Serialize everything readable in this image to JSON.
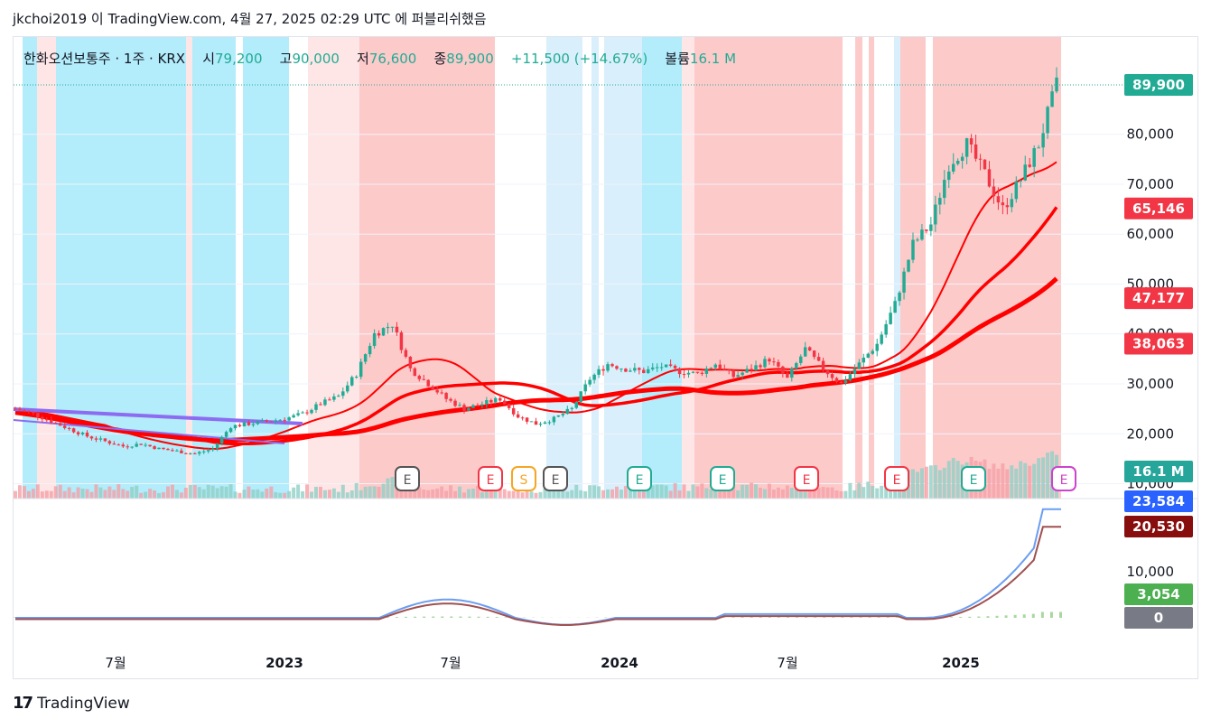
{
  "header": {
    "text": "jkchoi2019 이 TradingView.com, 4월 27, 2025 02:29 UTC 에 퍼블리쉬했음"
  },
  "legend": {
    "symbol": "한화오션보통주 · 1주 · KRX",
    "open_label": "시",
    "open": "79,200",
    "high_label": "고",
    "high": "90,000",
    "low_label": "저",
    "low": "76,600",
    "close_label": "종",
    "close": "89,900",
    "change": "+11,500 (+14.67%)",
    "volume_label": "볼륨",
    "volume": "16.1 M"
  },
  "colors": {
    "up": "#22ab94",
    "down": "#f23645",
    "bg_cyan": "#b3ecfb",
    "bg_lightblue": "#d9effb",
    "bg_pink": "#ffe6e6",
    "bg_red": "#fdcaca",
    "ma_red": "#ff0000",
    "ma_purple": "#8c6cf0",
    "ma_orange": "#f5c28a",
    "macd_line": "#6b9df0",
    "macd_signal": "#a05050",
    "macd_hist": "#a8d7a0"
  },
  "chart_data": [
    {
      "type": "candlestick",
      "title": "한화오션보통주 · 1주 · KRX",
      "x_ticks": [
        "7월",
        "2023",
        "7월",
        "2024",
        "7월",
        "2025"
      ],
      "y_ticks": [
        "80,000",
        "70,000",
        "60,000",
        "50,000",
        "40,000",
        "30,000",
        "20,000",
        "10,000"
      ],
      "ylim": [
        10000,
        90000
      ],
      "last_close": 89900,
      "last_ohlc": {
        "open": 79200,
        "high": 90000,
        "low": 76600,
        "close": 89900
      },
      "price_tags": [
        {
          "label": "89,900",
          "value": 89900,
          "color": "#22ab94"
        },
        {
          "label": "65,146",
          "value": 65146,
          "color": "#f23645"
        },
        {
          "label": "47,177",
          "value": 47177,
          "color": "#f23645"
        },
        {
          "label": "38,063",
          "value": 38063,
          "color": "#f23645"
        },
        {
          "label": "16.1 M",
          "value": 16.1,
          "color": "#26a69a",
          "kind": "volume"
        }
      ],
      "events": [
        "E",
        "E",
        "S",
        "E",
        "E",
        "E",
        "E",
        "E",
        "E",
        "E"
      ],
      "close_path": [
        25000,
        24000,
        22500,
        21000,
        19500,
        18500,
        17500,
        18000,
        17000,
        16500,
        16000,
        17000,
        21500,
        22000,
        22500,
        23000,
        24000,
        26000,
        27500,
        32000,
        40000,
        42000,
        33000,
        30000,
        27000,
        25000,
        26000,
        27000,
        23500,
        22000,
        23000,
        25000,
        31000,
        34000,
        33000,
        32500,
        33500,
        32500,
        32000,
        34000,
        31500,
        33000,
        35000,
        31000,
        37000,
        33000,
        30000,
        34000,
        38000,
        46000,
        58000,
        62000,
        74000,
        78000,
        72000,
        65000,
        71000,
        78000,
        89900
      ]
    },
    {
      "type": "line",
      "title": "MACD",
      "y_ticks": [
        "10,000",
        "0"
      ],
      "price_tags": [
        {
          "label": "23,584",
          "value": 23584,
          "color": "#2962ff"
        },
        {
          "label": "20,530",
          "value": 20530,
          "color": "#880e0e"
        },
        {
          "label": "3,054",
          "value": 3054,
          "color": "#4caf50"
        },
        {
          "label": "0",
          "value": 0,
          "color": "#787b86"
        }
      ]
    }
  ],
  "brand": {
    "name": "TradingView",
    "logo_text": "17"
  }
}
